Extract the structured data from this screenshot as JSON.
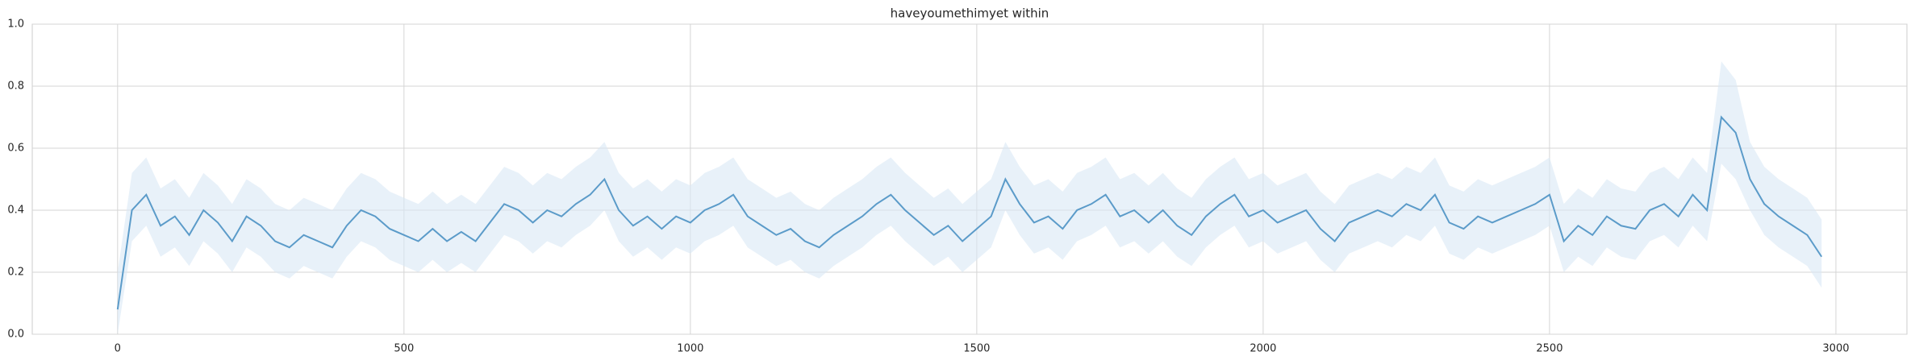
{
  "chart_data": {
    "type": "line",
    "title": "haveyoumethimyet within",
    "x": [
      0,
      25,
      50,
      75,
      100,
      125,
      150,
      175,
      200,
      225,
      250,
      275,
      300,
      325,
      350,
      375,
      400,
      425,
      450,
      475,
      500,
      525,
      550,
      575,
      600,
      625,
      650,
      675,
      700,
      725,
      750,
      775,
      800,
      825,
      850,
      875,
      900,
      925,
      950,
      975,
      1000,
      1025,
      1050,
      1075,
      1100,
      1125,
      1150,
      1175,
      1200,
      1225,
      1250,
      1275,
      1300,
      1325,
      1350,
      1375,
      1400,
      1425,
      1450,
      1475,
      1500,
      1525,
      1550,
      1575,
      1600,
      1625,
      1650,
      1675,
      1700,
      1725,
      1750,
      1775,
      1800,
      1825,
      1850,
      1875,
      1900,
      1925,
      1950,
      1975,
      2000,
      2025,
      2050,
      2075,
      2100,
      2125,
      2150,
      2175,
      2200,
      2225,
      2250,
      2275,
      2300,
      2325,
      2350,
      2375,
      2400,
      2425,
      2450,
      2475,
      2500,
      2525,
      2550,
      2575,
      2600,
      2625,
      2650,
      2675,
      2700,
      2725,
      2750,
      2775,
      2800,
      2825,
      2850,
      2875,
      2900,
      2925,
      2950,
      2975
    ],
    "values": [
      0.08,
      0.4,
      0.45,
      0.35,
      0.38,
      0.32,
      0.4,
      0.36,
      0.3,
      0.38,
      0.35,
      0.3,
      0.28,
      0.32,
      0.3,
      0.28,
      0.35,
      0.4,
      0.38,
      0.34,
      0.32,
      0.3,
      0.34,
      0.3,
      0.33,
      0.3,
      0.36,
      0.42,
      0.4,
      0.36,
      0.4,
      0.38,
      0.42,
      0.45,
      0.5,
      0.4,
      0.35,
      0.38,
      0.34,
      0.38,
      0.36,
      0.4,
      0.42,
      0.45,
      0.38,
      0.35,
      0.32,
      0.34,
      0.3,
      0.28,
      0.32,
      0.35,
      0.38,
      0.42,
      0.45,
      0.4,
      0.36,
      0.32,
      0.35,
      0.3,
      0.34,
      0.38,
      0.5,
      0.42,
      0.36,
      0.38,
      0.34,
      0.4,
      0.42,
      0.45,
      0.38,
      0.4,
      0.36,
      0.4,
      0.35,
      0.32,
      0.38,
      0.42,
      0.45,
      0.38,
      0.4,
      0.36,
      0.38,
      0.4,
      0.34,
      0.3,
      0.36,
      0.38,
      0.4,
      0.38,
      0.42,
      0.4,
      0.45,
      0.36,
      0.34,
      0.38,
      0.36,
      0.38,
      0.4,
      0.42,
      0.45,
      0.3,
      0.35,
      0.32,
      0.38,
      0.35,
      0.34,
      0.4,
      0.42,
      0.38,
      0.45,
      0.4,
      0.7,
      0.65,
      0.5,
      0.42,
      0.38,
      0.35,
      0.32,
      0.25
    ],
    "lower": [
      0.0,
      0.3,
      0.35,
      0.25,
      0.28,
      0.22,
      0.3,
      0.26,
      0.2,
      0.28,
      0.25,
      0.2,
      0.18,
      0.22,
      0.2,
      0.18,
      0.25,
      0.3,
      0.28,
      0.24,
      0.22,
      0.2,
      0.24,
      0.2,
      0.23,
      0.2,
      0.26,
      0.32,
      0.3,
      0.26,
      0.3,
      0.28,
      0.32,
      0.35,
      0.4,
      0.3,
      0.25,
      0.28,
      0.24,
      0.28,
      0.26,
      0.3,
      0.32,
      0.35,
      0.28,
      0.25,
      0.22,
      0.24,
      0.2,
      0.18,
      0.22,
      0.25,
      0.28,
      0.32,
      0.35,
      0.3,
      0.26,
      0.22,
      0.25,
      0.2,
      0.24,
      0.28,
      0.4,
      0.32,
      0.26,
      0.28,
      0.24,
      0.3,
      0.32,
      0.35,
      0.28,
      0.3,
      0.26,
      0.3,
      0.25,
      0.22,
      0.28,
      0.32,
      0.35,
      0.28,
      0.3,
      0.26,
      0.28,
      0.3,
      0.24,
      0.2,
      0.26,
      0.28,
      0.3,
      0.28,
      0.32,
      0.3,
      0.35,
      0.26,
      0.24,
      0.28,
      0.26,
      0.28,
      0.3,
      0.32,
      0.35,
      0.2,
      0.25,
      0.22,
      0.28,
      0.25,
      0.24,
      0.3,
      0.32,
      0.28,
      0.35,
      0.3,
      0.55,
      0.5,
      0.4,
      0.32,
      0.28,
      0.25,
      0.22,
      0.15
    ],
    "upper": [
      0.2,
      0.52,
      0.57,
      0.47,
      0.5,
      0.44,
      0.52,
      0.48,
      0.42,
      0.5,
      0.47,
      0.42,
      0.4,
      0.44,
      0.42,
      0.4,
      0.47,
      0.52,
      0.5,
      0.46,
      0.44,
      0.42,
      0.46,
      0.42,
      0.45,
      0.42,
      0.48,
      0.54,
      0.52,
      0.48,
      0.52,
      0.5,
      0.54,
      0.57,
      0.62,
      0.52,
      0.47,
      0.5,
      0.46,
      0.5,
      0.48,
      0.52,
      0.54,
      0.57,
      0.5,
      0.47,
      0.44,
      0.46,
      0.42,
      0.4,
      0.44,
      0.47,
      0.5,
      0.54,
      0.57,
      0.52,
      0.48,
      0.44,
      0.47,
      0.42,
      0.46,
      0.5,
      0.62,
      0.54,
      0.48,
      0.5,
      0.46,
      0.52,
      0.54,
      0.57,
      0.5,
      0.52,
      0.48,
      0.52,
      0.47,
      0.44,
      0.5,
      0.54,
      0.57,
      0.5,
      0.52,
      0.48,
      0.5,
      0.52,
      0.46,
      0.42,
      0.48,
      0.5,
      0.52,
      0.5,
      0.54,
      0.52,
      0.57,
      0.48,
      0.46,
      0.5,
      0.48,
      0.5,
      0.52,
      0.54,
      0.57,
      0.42,
      0.47,
      0.44,
      0.5,
      0.47,
      0.46,
      0.52,
      0.54,
      0.5,
      0.57,
      0.52,
      0.88,
      0.82,
      0.62,
      0.54,
      0.5,
      0.47,
      0.44,
      0.37
    ],
    "color": "#5b9bc9",
    "band_color": "#d8e7f5",
    "xlim": [
      -149,
      3124
    ],
    "xticks": [
      0,
      500,
      1000,
      1500,
      2000,
      2500,
      3000
    ],
    "ylim": [
      0,
      1
    ],
    "yticks": [
      {
        "value": 0,
        "label": "0.0"
      },
      0.2,
      0.4,
      0.6,
      0.8,
      {
        "value": 1,
        "label": "1.0"
      }
    ],
    "grid": true
  }
}
